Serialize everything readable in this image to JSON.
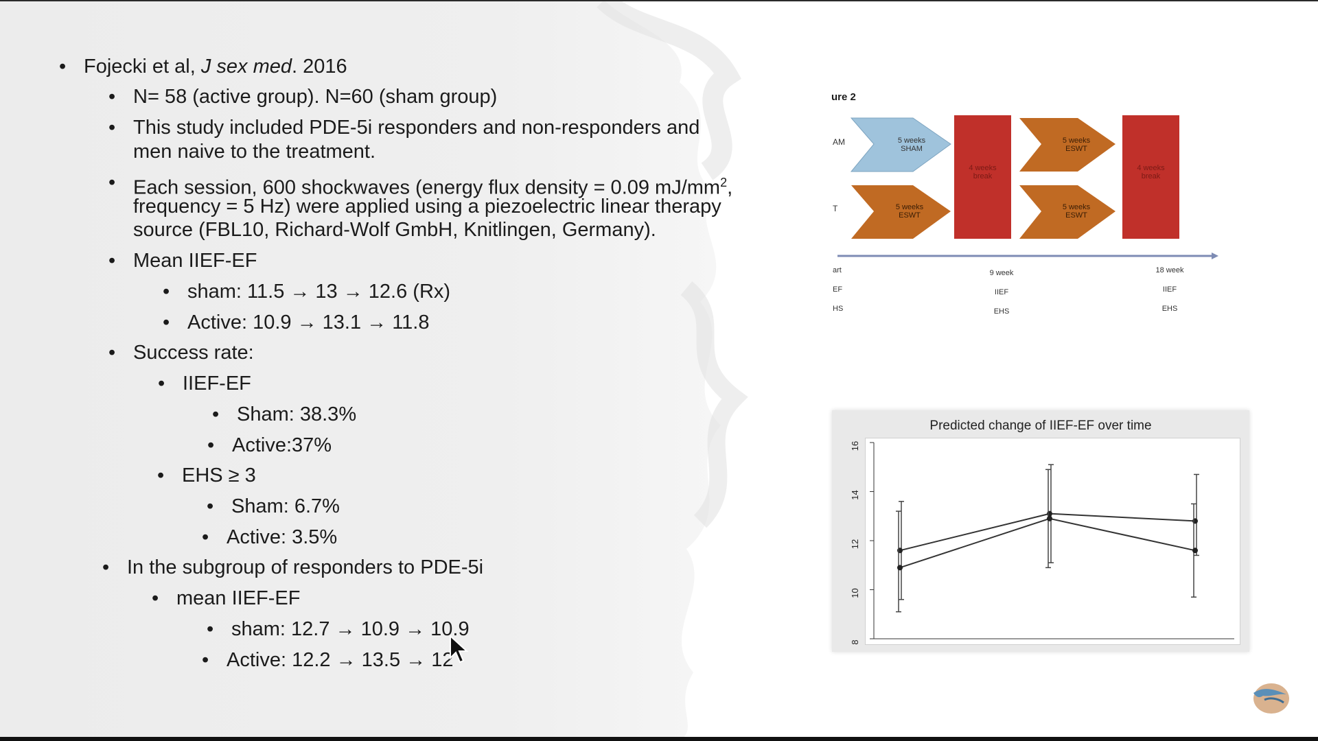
{
  "slide": {
    "bullets": [
      {
        "text_prefix": "Fojecki et al, ",
        "text_italic": "J sex med",
        "text_suffix": ". 2016"
      },
      {
        "text": "N= 58 (active group).  N=60 (sham group)"
      },
      {
        "line1": "This study included PDE-5i responders and non-responders and",
        "line2": "men naive to the treatment."
      },
      {
        "line1": "Each session, 600 shockwaves (energy flux density = 0.09 mJ/mm",
        "sup": "2",
        "line1_end": ",",
        "line2": "frequency = 5 Hz) were applied  using a piezoelectric linear therapy",
        "line3": "source (FBL10, Richard-Wolf GmbH, Knitlingen, Germany)."
      },
      {
        "text": "Mean IIEF-EF"
      },
      {
        "text": "sham: 11.5 → 13 → 12.6 (Rx)"
      },
      {
        "text": "Active: 10.9 →  13.1 → 11.8"
      },
      {
        "text": "Success rate:"
      },
      {
        "text": "IIEF-EF"
      },
      {
        "text": "Sham: 38.3%"
      },
      {
        "text": "Active:37%"
      },
      {
        "text": "EHS ≥ 3"
      },
      {
        "text": "Sham: 6.7%"
      },
      {
        "text": "Active:  3.5%"
      },
      {
        "text": "In the subgroup of responders to PDE-5i"
      },
      {
        "text": "mean IIEF-EF"
      },
      {
        "text": "sham: 12.7 → 10.9 → 10.9"
      },
      {
        "text": "Active: 12.2 → 13.5 → 12"
      }
    ],
    "bullet_char": "•"
  },
  "figure2": {
    "title": "ure 2",
    "row_labels": [
      "AM",
      "T"
    ],
    "boxes": [
      {
        "line1": "5 weeks",
        "line2": "SHAM",
        "color": "#9fc3dc"
      },
      {
        "line1": "5 weeks",
        "line2": "ESWT",
        "color": "#c06a23"
      },
      {
        "line1": "5 weeks",
        "line2": "ESWT",
        "color": "#c06a23"
      },
      {
        "line1": "5 weeks",
        "line2": "ESWT",
        "color": "#c06a23"
      }
    ],
    "breaks": [
      {
        "line1": "4 weeks",
        "line2": "break",
        "color": "#c0302a"
      },
      {
        "line1": "4 weeks",
        "line2": "break",
        "color": "#c0302a"
      }
    ],
    "timeline_left": [
      "art",
      "EF",
      "HS"
    ],
    "timeline_mid": [
      "9 week",
      "IIEF",
      "EHS"
    ],
    "timeline_right": [
      "18 week",
      "IIEF",
      "EHS"
    ]
  },
  "chart_data": {
    "type": "line",
    "title": "Predicted change of IIEF-EF over time",
    "x": [
      0,
      1,
      2
    ],
    "ylim": [
      8,
      16
    ],
    "yticks": [
      "8",
      "10",
      "12",
      "14",
      "16"
    ],
    "series": [
      {
        "values": [
          11.6,
          13.1,
          12.8
        ],
        "err_low": [
          9.6,
          11.1,
          11.4
        ],
        "err_high": [
          13.6,
          15.1,
          14.7
        ]
      },
      {
        "values": [
          10.9,
          12.9,
          11.6
        ],
        "err_low": [
          9.1,
          10.9,
          9.7
        ],
        "err_high": [
          13.2,
          14.9,
          13.5
        ]
      }
    ]
  }
}
